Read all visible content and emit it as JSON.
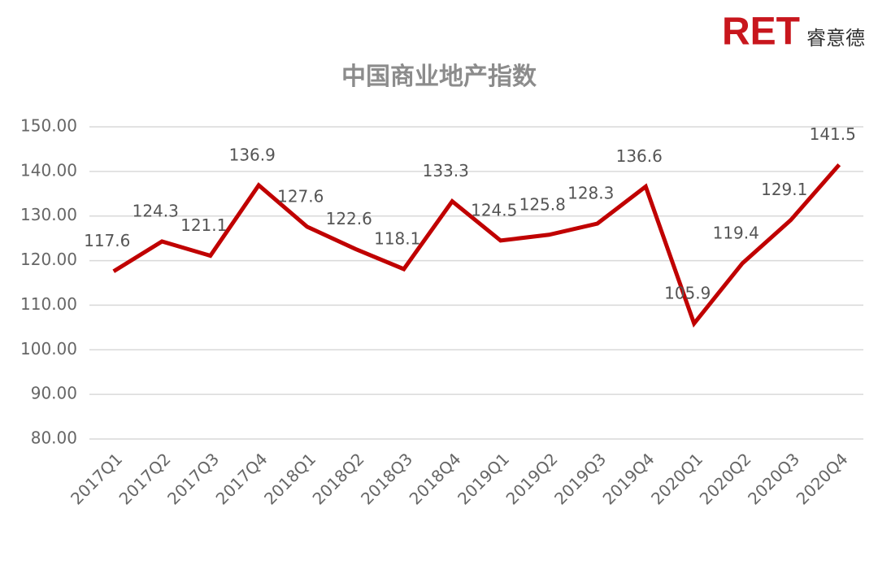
{
  "logo": {
    "brand": "RET",
    "name": "睿意德"
  },
  "chart_data": {
    "type": "line",
    "title": "中国商业地产指数",
    "categories": [
      "2017Q1",
      "2017Q2",
      "2017Q3",
      "2017Q4",
      "2018Q1",
      "2018Q2",
      "2018Q3",
      "2018Q4",
      "2019Q1",
      "2019Q2",
      "2019Q3",
      "2019Q4",
      "2020Q1",
      "2020Q2",
      "2020Q3",
      "2020Q4"
    ],
    "values": [
      117.6,
      124.3,
      121.1,
      136.9,
      127.6,
      122.6,
      118.1,
      133.3,
      124.5,
      125.8,
      128.3,
      136.6,
      105.9,
      119.4,
      129.1,
      141.5
    ],
    "color": "#c00000",
    "ylim": [
      80,
      150
    ],
    "yticks": [
      {
        "value": 80,
        "label": "80.00"
      },
      {
        "value": 90,
        "label": "90.00"
      },
      {
        "value": 100,
        "label": "100.00"
      },
      {
        "value": 110,
        "label": "110.00"
      },
      {
        "value": 120,
        "label": "120.00"
      },
      {
        "value": 130,
        "label": "130.00"
      },
      {
        "value": 140,
        "label": "140.00"
      },
      {
        "value": 150,
        "label": "150.00"
      }
    ],
    "grid": true
  }
}
